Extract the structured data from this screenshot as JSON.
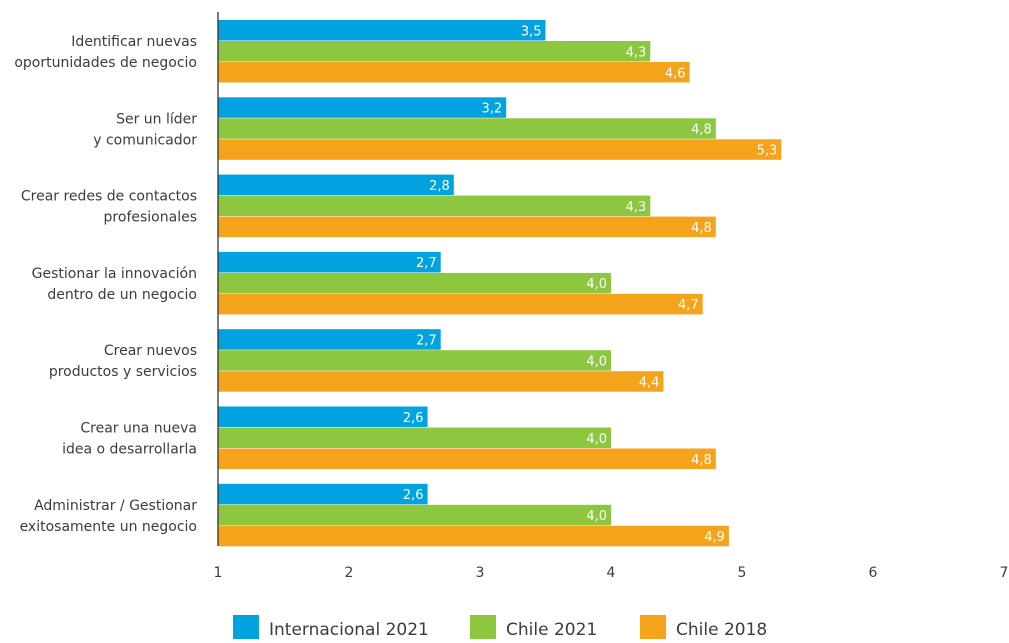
{
  "chart_data": {
    "type": "bar",
    "orientation": "horizontal",
    "categories": [
      [
        "Identificar nuevas",
        "oportunidades de negocio"
      ],
      [
        "Ser un líder",
        "y comunicador"
      ],
      [
        "Crear redes de contactos",
        "profesionales"
      ],
      [
        "Gestionar la innovación",
        "dentro de un negocio"
      ],
      [
        "Crear nuevos",
        "productos y servicios"
      ],
      [
        "Crear una nueva",
        "idea o desarrollarla"
      ],
      [
        "Administrar / Gestionar",
        "exitosamente un negocio"
      ]
    ],
    "series": [
      {
        "name": "Internacional 2021",
        "color": "#00a3e0",
        "values": [
          3.5,
          3.2,
          2.8,
          2.7,
          2.7,
          2.6,
          2.6
        ],
        "labels": [
          "3,5",
          "3,2",
          "2,8",
          "2,7",
          "2,7",
          "2,6",
          "2,6"
        ]
      },
      {
        "name": "Chile 2021",
        "color": "#8dc63f",
        "values": [
          4.3,
          4.8,
          4.3,
          4.0,
          4.0,
          4.0,
          4.0
        ],
        "labels": [
          "4,3",
          "4,8",
          "4,3",
          "4,0",
          "4,0",
          "4,0",
          "4,0"
        ]
      },
      {
        "name": "Chile 2018",
        "color": "#f5a31a",
        "values": [
          4.6,
          5.3,
          4.8,
          4.7,
          4.4,
          4.8,
          4.9
        ],
        "labels": [
          "4,6",
          "5,3",
          "4,8",
          "4,7",
          "4,4",
          "4,8",
          "4,9"
        ]
      }
    ],
    "xlim": [
      1,
      7
    ],
    "xticks": [
      1,
      2,
      3,
      4,
      5,
      6,
      7
    ],
    "xtick_labels": [
      "1",
      "2",
      "3",
      "4",
      "5",
      "6",
      "7"
    ],
    "grid": false,
    "legend_position": "bottom",
    "axis_color": "#333333"
  }
}
